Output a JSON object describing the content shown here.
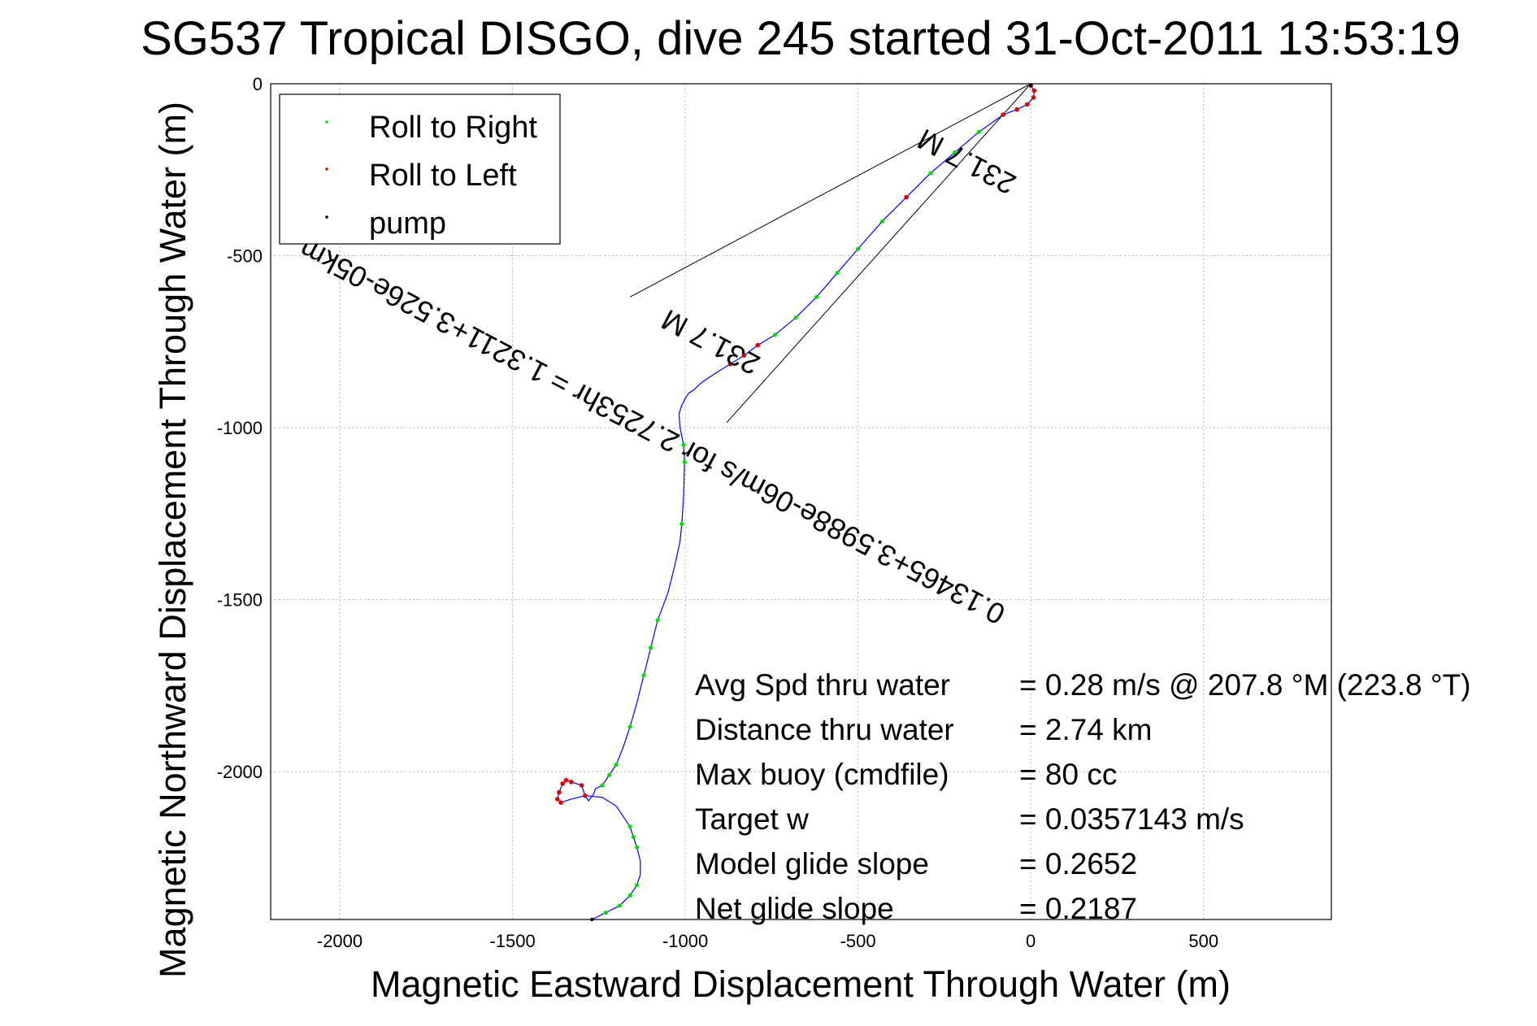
{
  "chart_data": {
    "type": "line",
    "title": "SG537 Tropical DISGO, dive 245 started 31-Oct-2011 13:53:19",
    "xlabel": "Magnetic Eastward Displacement Through Water (m)",
    "ylabel": "Magnetic Northward Displacement Through Water (m)",
    "xlim": [
      -2200,
      870
    ],
    "ylim": [
      -2430,
      0
    ],
    "xticks": [
      -2000,
      -1500,
      -1000,
      -500,
      0,
      500
    ],
    "xtick_labels": [
      "-2000",
      "-1500",
      "-1000",
      "-500",
      "0",
      "500"
    ],
    "yticks": [
      0,
      -500,
      -1000,
      -1500,
      -2000
    ],
    "ytick_labels": [
      "0",
      "-500",
      "-1000",
      "-1500",
      "-2000"
    ],
    "grid": true,
    "legend_position": "top-left",
    "legend": [
      {
        "label": "Roll to Right",
        "color": "#00dd00"
      },
      {
        "label": "Roll to Left",
        "color": "#dd0000"
      },
      {
        "label": "pump",
        "color": "#000000"
      }
    ],
    "track_color": "#0000ff",
    "track": {
      "x": [
        0,
        10,
        8,
        -10,
        -40,
        -80,
        -150,
        -220,
        -290,
        -360,
        -430,
        -500,
        -560,
        -620,
        -680,
        -740,
        -790,
        -830,
        -870,
        -910,
        -940,
        -960,
        -975,
        -990,
        -1000,
        -1010,
        -1018,
        -1015,
        -1005,
        -1002,
        -1005,
        -1010,
        -1015,
        -1030,
        -1050,
        -1080,
        -1100,
        -1120,
        -1140,
        -1160,
        -1180,
        -1200,
        -1220,
        -1240,
        -1260,
        -1265,
        -1280,
        -1290,
        -1300,
        -1330,
        -1345,
        -1355,
        -1365,
        -1370,
        -1360,
        -1330,
        -1290,
        -1240,
        -1200,
        -1180,
        -1160,
        -1150,
        -1140,
        -1130,
        -1130,
        -1140,
        -1160,
        -1190,
        -1230,
        -1270
      ],
      "y": [
        -5,
        -20,
        -40,
        -60,
        -75,
        -90,
        -140,
        -200,
        -260,
        -330,
        -400,
        -480,
        -550,
        -620,
        -680,
        -730,
        -760,
        -790,
        -815,
        -840,
        -860,
        -875,
        -890,
        -900,
        -915,
        -935,
        -960,
        -1000,
        -1050,
        -1100,
        -1200,
        -1280,
        -1330,
        -1400,
        -1480,
        -1560,
        -1640,
        -1720,
        -1800,
        -1870,
        -1930,
        -1980,
        -2010,
        -2040,
        -2050,
        -2065,
        -2085,
        -2070,
        -2040,
        -2030,
        -2025,
        -2035,
        -2060,
        -2080,
        -2090,
        -2080,
        -2070,
        -2075,
        -2100,
        -2130,
        -2160,
        -2190,
        -2220,
        -2260,
        -2300,
        -2330,
        -2360,
        -2390,
        -2410,
        -2430
      ]
    },
    "roll_right_x": [
      -150,
      -220,
      -290,
      -430,
      -500,
      -560,
      -620,
      -680,
      -740,
      -1005,
      -1002,
      -1010,
      -1080,
      -1100,
      -1120,
      -1160,
      -1200,
      -1220,
      -1240,
      -1160,
      -1150,
      -1140,
      -1140,
      -1160,
      -1190,
      -1230
    ],
    "roll_right_y": [
      -140,
      -200,
      -260,
      -400,
      -480,
      -550,
      -620,
      -680,
      -730,
      -1050,
      -1100,
      -1280,
      -1560,
      -1640,
      -1720,
      -1870,
      -1980,
      -2010,
      -2040,
      -2160,
      -2190,
      -2220,
      -2330,
      -2360,
      -2390,
      -2410
    ],
    "roll_left_x": [
      0,
      10,
      8,
      -10,
      -40,
      -80,
      -360,
      -790,
      -830,
      -870,
      -1290,
      -1300,
      -1330,
      -1345,
      -1355,
      -1365,
      -1370,
      -1360
    ],
    "roll_left_y": [
      -5,
      -20,
      -40,
      -60,
      -75,
      -90,
      -330,
      -760,
      -790,
      -815,
      -2070,
      -2040,
      -2030,
      -2025,
      -2035,
      -2060,
      -2080,
      -2090
    ],
    "pump_x": [
      0,
      -1270
    ],
    "pump_y": [
      -5,
      -2430
    ],
    "heading_lines": [
      {
        "x": [
          0,
          -1160
        ],
        "y": [
          0,
          -620
        ]
      },
      {
        "x": [
          0,
          -880
        ],
        "y": [
          0,
          -985
        ]
      }
    ],
    "rotated_annotations": [
      {
        "text": "231.7 M",
        "rotation": 207.8
      },
      {
        "text": "0.13465+3.5988e-06m/s for 2.7253hr = 1.3211+3.526e-05km",
        "rotation": 207.8
      },
      {
        "text": "231.7 M",
        "rotation": 207.8
      }
    ],
    "stats": [
      {
        "label": "Avg Spd thru water",
        "value": "=  0.28 m/s @ 207.8 °M (223.8 °T)"
      },
      {
        "label": "Distance thru water",
        "value": "=  2.74 km"
      },
      {
        "label": "Max buoy (cmdfile)",
        "value": "= 80 cc"
      },
      {
        "label": "Target w",
        "value": "= 0.0357143 m/s"
      },
      {
        "label": "Model glide slope",
        "value": "= 0.2652"
      },
      {
        "label": "Net glide slope",
        "value": "= 0.2187"
      }
    ]
  }
}
